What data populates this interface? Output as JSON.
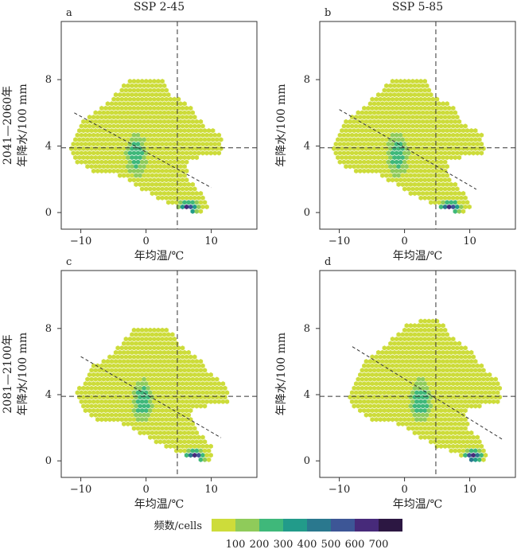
{
  "chart_data": [
    {
      "type": "hexbin",
      "panel_label": "a",
      "column_title": "SSP 2-45",
      "row_title": "2041—2060年",
      "xlabel": "年均温/℃",
      "ylabel": "年降水/100 mm",
      "xlim": [
        -13,
        17
      ],
      "ylim": [
        -1,
        11.5
      ],
      "xticks": [
        -10,
        0,
        10
      ],
      "yticks": [
        0,
        4,
        8
      ],
      "vline_x": 4.8,
      "hline_y": 3.9,
      "trend_line": {
        "x": [
          -11,
          10
        ],
        "y": [
          6.0,
          1.5
        ]
      },
      "hotspots": [
        {
          "x": -1.5,
          "y": 3.5,
          "value": 300
        },
        {
          "x": 6.5,
          "y": 0.3,
          "value": 650
        }
      ]
    },
    {
      "type": "hexbin",
      "panel_label": "b",
      "column_title": "SSP 5-85",
      "xlabel": "年均温/℃",
      "ylabel": "年降水/100 mm",
      "xlim": [
        -13,
        17
      ],
      "ylim": [
        -1,
        11.5
      ],
      "xticks": [
        -10,
        0,
        10
      ],
      "yticks": [
        0,
        4,
        8
      ],
      "vline_x": 4.8,
      "hline_y": 3.9,
      "trend_line": {
        "x": [
          -10,
          11
        ],
        "y": [
          6.2,
          1.4
        ]
      },
      "hotspots": [
        {
          "x": -1.0,
          "y": 3.5,
          "value": 300
        },
        {
          "x": 7.0,
          "y": 0.3,
          "value": 650
        }
      ]
    },
    {
      "type": "hexbin",
      "panel_label": "c",
      "row_title": "2081—2100年",
      "xlabel": "年均温/℃",
      "ylabel": "年降水/100 mm",
      "xlim": [
        -13,
        17
      ],
      "ylim": [
        -1,
        11.5
      ],
      "xticks": [
        -10,
        0,
        10
      ],
      "yticks": [
        0,
        4,
        8
      ],
      "vline_x": 4.8,
      "hline_y": 3.9,
      "trend_line": {
        "x": [
          -10,
          11.5
        ],
        "y": [
          6.3,
          1.4
        ]
      },
      "hotspots": [
        {
          "x": -0.5,
          "y": 3.6,
          "value": 300
        },
        {
          "x": 7.5,
          "y": 0.3,
          "value": 650
        }
      ]
    },
    {
      "type": "hexbin",
      "panel_label": "d",
      "xlabel": "年均温/℃",
      "ylabel": "年降水/100 mm",
      "xlim": [
        -13,
        17
      ],
      "ylim": [
        -1,
        11.5
      ],
      "xticks": [
        -10,
        0,
        10
      ],
      "yticks": [
        0,
        4,
        8
      ],
      "vline_x": 4.8,
      "hline_y": 3.9,
      "trend_line": {
        "x": [
          -8,
          15
        ],
        "y": [
          6.9,
          1.3
        ]
      },
      "hotspots": [
        {
          "x": 2.5,
          "y": 3.6,
          "value": 300
        },
        {
          "x": 10.5,
          "y": 0.3,
          "value": 650
        }
      ]
    }
  ],
  "colorbar": {
    "title": "频数/cells",
    "colors": [
      "#cddc3a",
      "#8fcb5a",
      "#3fb87a",
      "#229b8a",
      "#2a788e",
      "#3d5696",
      "#472a7a",
      "#2c1742"
    ],
    "tick_labels": [
      "100",
      "200",
      "300",
      "400",
      "500",
      "600",
      "700"
    ]
  }
}
